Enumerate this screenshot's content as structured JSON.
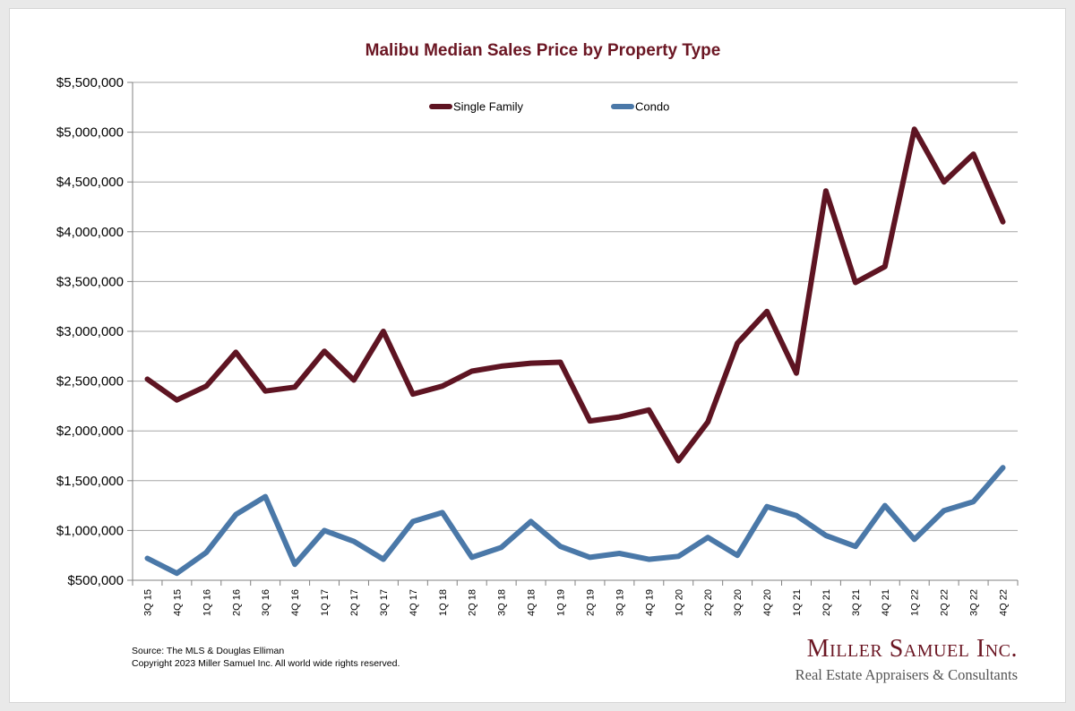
{
  "chart_data": {
    "type": "line",
    "title": "Malibu Median Sales Price by Property Type",
    "xlabel": "",
    "ylabel": "",
    "ylim": [
      500000,
      5500000
    ],
    "yticks": [
      "$500,000",
      "$1,000,000",
      "$1,500,000",
      "$2,000,000",
      "$2,500,000",
      "$3,000,000",
      "$3,500,000",
      "$4,000,000",
      "$4,500,000",
      "$5,000,000",
      "$5,500,000"
    ],
    "grid": true,
    "legend_position": "top-center",
    "categories": [
      "3Q 15",
      "4Q 15",
      "1Q 16",
      "2Q 16",
      "3Q 16",
      "4Q 16",
      "1Q 17",
      "2Q 17",
      "3Q 17",
      "4Q 17",
      "1Q 18",
      "2Q 18",
      "3Q 18",
      "4Q 18",
      "1Q 19",
      "2Q 19",
      "3Q 19",
      "4Q 19",
      "1Q 20",
      "2Q 20",
      "3Q 20",
      "4Q 20",
      "1Q 21",
      "2Q 21",
      "3Q 21",
      "4Q 21",
      "1Q 22",
      "2Q 22",
      "3Q 22",
      "4Q 22"
    ],
    "series": [
      {
        "name": "Single Family",
        "color": "#5e1422",
        "values": [
          2520000,
          2310000,
          2450000,
          2790000,
          2400000,
          2440000,
          2800000,
          2510000,
          3000000,
          2370000,
          2450000,
          2600000,
          2650000,
          2680000,
          2690000,
          2100000,
          2140000,
          2210000,
          1700000,
          2090000,
          2880000,
          3200000,
          2580000,
          4410000,
          3490000,
          3650000,
          5030000,
          4500000,
          4780000,
          4100000
        ]
      },
      {
        "name": "Condo",
        "color": "#4a78a8",
        "values": [
          720000,
          570000,
          780000,
          1160000,
          1340000,
          660000,
          1000000,
          890000,
          710000,
          1090000,
          1180000,
          730000,
          830000,
          1090000,
          840000,
          730000,
          770000,
          710000,
          740000,
          930000,
          750000,
          1240000,
          1150000,
          950000,
          840000,
          1250000,
          910000,
          1200000,
          1290000,
          1630000
        ]
      }
    ]
  },
  "footer": {
    "source": "Source: The MLS & Douglas Elliman",
    "copyright": "Copyright 2023 Miller Samuel Inc.  All world wide rights reserved."
  },
  "brand": {
    "name": "Miller Samuel Inc.",
    "tagline": "Real Estate Appraisers & Consultants"
  }
}
